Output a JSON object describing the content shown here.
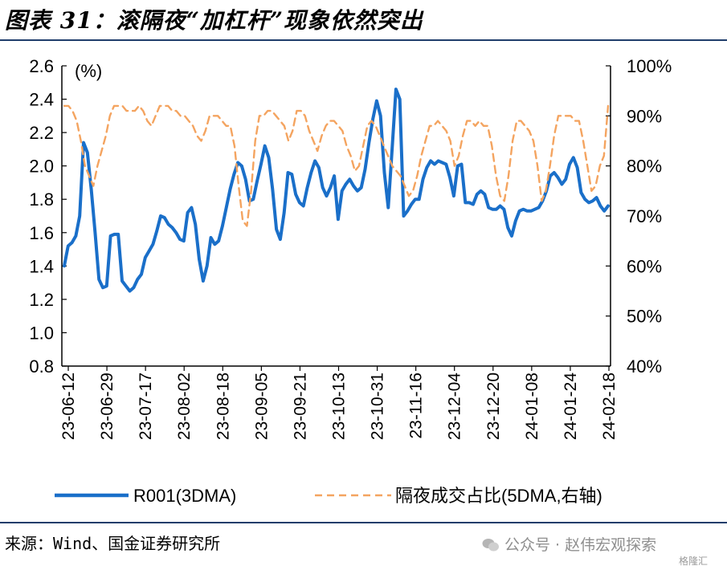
{
  "header": {
    "title": "图表 31：滚隔夜“加杠杆”现象依然突出"
  },
  "footer": {
    "source": "来源：Wind、国金证券研究所",
    "watermark": "公众号 · 赵伟宏观探索",
    "watermark_sub": "格隆汇"
  },
  "colors": {
    "series1": "#1a6fc9",
    "series2": "#f4a460",
    "rule": "#1f3d6b"
  },
  "chart_data": {
    "type": "line",
    "left_axis": {
      "min": 0.8,
      "max": 2.6,
      "ticks": [
        "2.6",
        "2.4",
        "2.2",
        "2.0",
        "1.8",
        "1.6",
        "1.4",
        "1.2",
        "1.0",
        "0.8"
      ]
    },
    "right_axis": {
      "min": 40,
      "max": 100,
      "unit_label": "(%)",
      "ticks": [
        "100%",
        "90%",
        "80%",
        "70%",
        "60%",
        "50%",
        "40%"
      ]
    },
    "x_ticks": [
      "23-06-12",
      "23-06-29",
      "23-07-17",
      "23-08-02",
      "23-08-18",
      "23-09-05",
      "23-09-21",
      "23-10-13",
      "23-10-31",
      "23-11-16",
      "23-12-04",
      "23-12-20",
      "24-01-08",
      "24-01-24",
      "24-02-18"
    ],
    "grid": false,
    "legend_position": "bottom",
    "series": [
      {
        "name": "R001(3DMA)",
        "axis": "left",
        "style": "solid",
        "values": [
          1.4,
          1.52,
          1.54,
          1.58,
          1.7,
          2.14,
          2.08,
          1.86,
          1.6,
          1.32,
          1.27,
          1.28,
          1.58,
          1.59,
          1.59,
          1.31,
          1.28,
          1.25,
          1.27,
          1.32,
          1.35,
          1.45,
          1.49,
          1.53,
          1.61,
          1.7,
          1.69,
          1.65,
          1.63,
          1.6,
          1.56,
          1.55,
          1.72,
          1.75,
          1.65,
          1.44,
          1.31,
          1.4,
          1.57,
          1.53,
          1.55,
          1.64,
          1.75,
          1.86,
          1.95,
          2.02,
          2.0,
          1.92,
          1.79,
          1.8,
          1.91,
          2.01,
          2.12,
          2.05,
          1.86,
          1.62,
          1.56,
          1.72,
          1.96,
          1.95,
          1.83,
          1.78,
          1.76,
          1.87,
          1.96,
          2.03,
          1.99,
          1.87,
          1.82,
          1.87,
          1.94,
          1.68,
          1.85,
          1.89,
          1.92,
          1.88,
          1.85,
          1.87,
          1.98,
          2.14,
          2.28,
          2.39,
          2.3,
          1.96,
          1.75,
          2.1,
          2.46,
          2.4,
          1.7,
          1.73,
          1.77,
          1.8,
          1.8,
          1.92,
          1.99,
          2.03,
          2.01,
          2.03,
          2.02,
          2.01,
          1.93,
          1.82,
          2.0,
          2.01,
          1.78,
          1.78,
          1.77,
          1.83,
          1.85,
          1.83,
          1.75,
          1.74,
          1.74,
          1.76,
          1.74,
          1.63,
          1.58,
          1.67,
          1.73,
          1.74,
          1.73,
          1.73,
          1.74,
          1.75,
          1.79,
          1.85,
          1.94,
          1.96,
          1.93,
          1.89,
          1.92,
          2.01,
          2.05,
          1.99,
          1.84,
          1.8,
          1.78,
          1.79,
          1.81,
          1.76,
          1.73,
          1.76
        ]
      },
      {
        "name": "隔夜成交占比(5DMA,右轴)",
        "axis": "right",
        "style": "dashed",
        "values": [
          92,
          92,
          91,
          89,
          85,
          80,
          78,
          76,
          80,
          83,
          86,
          90,
          92,
          92,
          92,
          91,
          91,
          91,
          92,
          91,
          89,
          88,
          90,
          92,
          92,
          92,
          91,
          91,
          90,
          90,
          89,
          88,
          86,
          85,
          87,
          90,
          90,
          90,
          89,
          88,
          88,
          84,
          76,
          69,
          68,
          75,
          85,
          90,
          90,
          91,
          91,
          90,
          89,
          88,
          85,
          87,
          91,
          91,
          90,
          87,
          85,
          83,
          86,
          88,
          89,
          89,
          88,
          87,
          84,
          82,
          79,
          80,
          84,
          88,
          89,
          88,
          86,
          84,
          82,
          80,
          79,
          78,
          76,
          74,
          75,
          78,
          82,
          85,
          88,
          88,
          89,
          88,
          87,
          85,
          80,
          82,
          86,
          89,
          89,
          88,
          89,
          88,
          88,
          84,
          78,
          74,
          73,
          78,
          85,
          89,
          89,
          88,
          87,
          85,
          80,
          73,
          75,
          80,
          86,
          90,
          90,
          90,
          90,
          89,
          89,
          85,
          80,
          75,
          76,
          80,
          82,
          92
        ]
      }
    ]
  }
}
